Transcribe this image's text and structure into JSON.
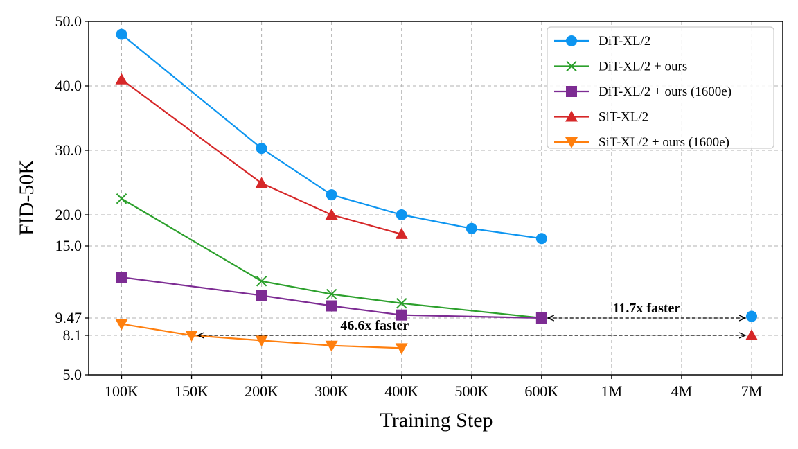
{
  "chart_data": {
    "type": "line",
    "title": "",
    "xlabel": "Training Step",
    "ylabel": "FID-50K",
    "categories": [
      "100K",
      "150K",
      "200K",
      "300K",
      "400K",
      "500K",
      "600K",
      "1M",
      "4M",
      "7M"
    ],
    "y_ticks": [
      {
        "value": 5.0,
        "label": "5.0"
      },
      {
        "value": 8.1,
        "label": "8.1"
      },
      {
        "value": 9.47,
        "label": "9.47"
      },
      {
        "value": 15.0,
        "label": "15.0"
      },
      {
        "value": 20.0,
        "label": "20.0"
      },
      {
        "value": 30.0,
        "label": "30.0"
      },
      {
        "value": 40.0,
        "label": "40.0"
      },
      {
        "value": 50.0,
        "label": "50.0"
      }
    ],
    "y_scale_note": "piecewise-linear axis through the labeled tick values",
    "ylim": [
      5.0,
      50.0
    ],
    "grid": true,
    "legend_position": "top-right",
    "series": [
      {
        "name": "DiT-XL/2",
        "color": "#0d95f0",
        "marker": "circle",
        "points": [
          {
            "x": "100K",
            "y": 48.0
          },
          {
            "x": "200K",
            "y": 30.3
          },
          {
            "x": "300K",
            "y": 23.1
          },
          {
            "x": "400K",
            "y": 20.0
          },
          {
            "x": "500K",
            "y": 17.8
          },
          {
            "x": "600K",
            "y": 16.2
          }
        ],
        "extra_points": [
          {
            "x": "7M",
            "y": 9.6
          }
        ]
      },
      {
        "name": "DiT-XL/2 + ours",
        "color": "#2ca02c",
        "marker": "x",
        "points": [
          {
            "x": "100K",
            "y": 22.5
          },
          {
            "x": "200K",
            "y": 12.3
          },
          {
            "x": "300K",
            "y": 11.3
          },
          {
            "x": "400K",
            "y": 10.6
          },
          {
            "x": "600K",
            "y": 9.47
          }
        ]
      },
      {
        "name": "DiT-XL/2 + ours (1600e)",
        "color": "#7d2c93",
        "marker": "square",
        "points": [
          {
            "x": "100K",
            "y": 12.6
          },
          {
            "x": "200K",
            "y": 11.2
          },
          {
            "x": "300K",
            "y": 10.4
          },
          {
            "x": "400K",
            "y": 9.7
          },
          {
            "x": "600K",
            "y": 9.47
          }
        ]
      },
      {
        "name": "SiT-XL/2",
        "color": "#d62728",
        "marker": "triangle-up",
        "points": [
          {
            "x": "100K",
            "y": 41.0
          },
          {
            "x": "200K",
            "y": 24.9
          },
          {
            "x": "300K",
            "y": 20.0
          },
          {
            "x": "400K",
            "y": 16.9
          }
        ],
        "extra_points": [
          {
            "x": "7M",
            "y": 8.1
          }
        ]
      },
      {
        "name": "SiT-XL/2 + ours (1600e)",
        "color": "#ff7f0e",
        "marker": "triangle-down",
        "points": [
          {
            "x": "100K",
            "y": 9.0
          },
          {
            "x": "150K",
            "y": 8.1
          },
          {
            "x": "200K",
            "y": 7.7
          },
          {
            "x": "300K",
            "y": 7.3
          },
          {
            "x": "400K",
            "y": 7.1
          }
        ]
      }
    ],
    "annotations": [
      {
        "text": "11.7x faster",
        "from": {
          "x": "600K",
          "y": 9.47
        },
        "to": {
          "x": "7M",
          "y": 9.47
        }
      },
      {
        "text": "46.6x faster",
        "from": {
          "x": "150K",
          "y": 8.1
        },
        "to": {
          "x": "7M",
          "y": 8.1
        }
      }
    ]
  }
}
